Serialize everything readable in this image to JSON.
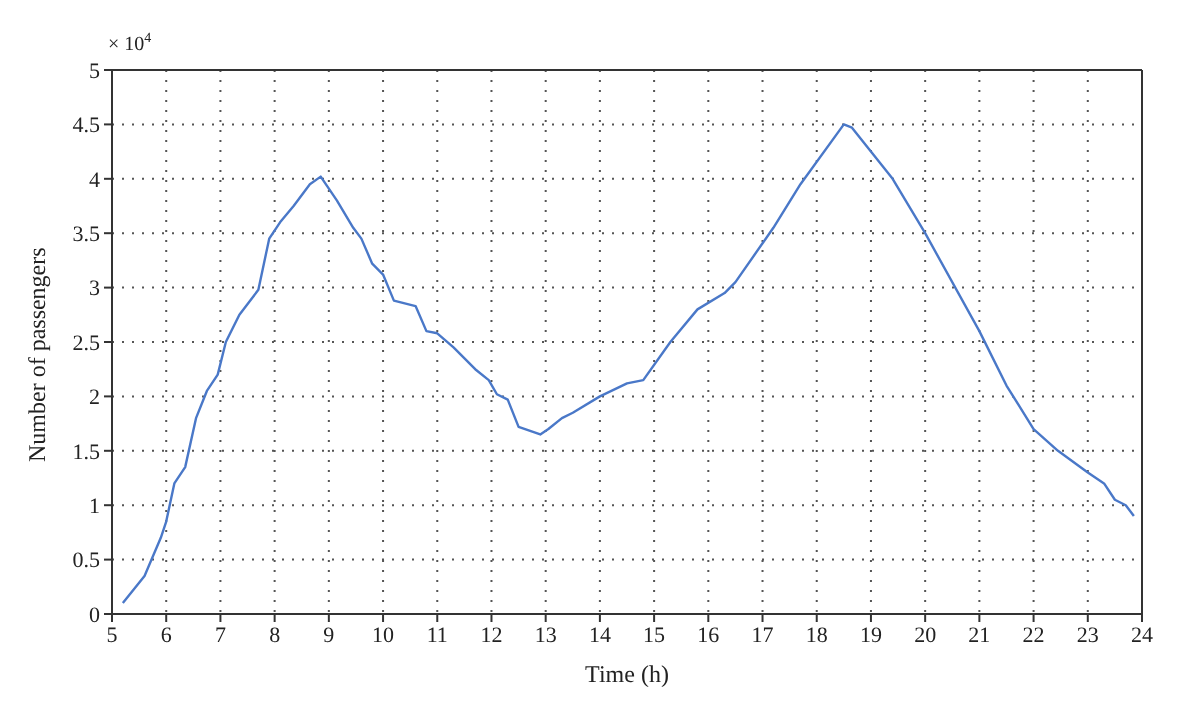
{
  "chart_data": {
    "type": "line",
    "xlabel": "Time (h)",
    "ylabel": "Number of passengers",
    "annotations": [
      "× 10$^{4}$"
    ],
    "x": [
      5.2,
      5.6,
      5.9,
      6.0,
      6.15,
      6.35,
      6.55,
      6.75,
      6.95,
      7.1,
      7.35,
      7.7,
      7.9,
      8.1,
      8.35,
      8.65,
      8.85,
      9.15,
      9.45,
      9.6,
      9.8,
      10.0,
      10.2,
      10.6,
      10.8,
      11.0,
      11.3,
      11.7,
      11.95,
      12.1,
      12.3,
      12.5,
      12.9,
      13.05,
      13.3,
      13.5,
      14.0,
      14.5,
      14.8,
      15.3,
      15.8,
      16.3,
      16.5,
      17.2,
      17.7,
      18.5,
      18.65,
      19.4,
      20.0,
      21.0,
      21.5,
      22.0,
      22.45,
      23.0,
      23.3,
      23.5,
      23.7,
      23.85
    ],
    "series": [
      {
        "color": "#4a78c8",
        "values": [
          0.1,
          0.35,
          0.7,
          0.85,
          1.2,
          1.35,
          1.8,
          2.05,
          2.2,
          2.5,
          2.75,
          2.98,
          3.45,
          3.6,
          3.75,
          3.95,
          4.02,
          3.8,
          3.55,
          3.45,
          3.22,
          3.12,
          2.88,
          2.83,
          2.6,
          2.58,
          2.45,
          2.25,
          2.15,
          2.02,
          1.97,
          1.72,
          1.65,
          1.7,
          1.8,
          1.85,
          2.0,
          2.12,
          2.15,
          2.5,
          2.8,
          2.95,
          3.05,
          3.55,
          3.95,
          4.5,
          4.47,
          4.0,
          3.5,
          2.6,
          2.1,
          1.7,
          1.5,
          1.3,
          1.2,
          1.05,
          1.0,
          0.9
        ]
      }
    ],
    "xlim": [
      5,
      24
    ],
    "xticks": [
      5,
      6,
      7,
      8,
      9,
      10,
      11,
      12,
      13,
      14,
      15,
      16,
      17,
      18,
      19,
      20,
      21,
      22,
      23,
      24
    ],
    "ylim": [
      0,
      5
    ],
    "yticks": [
      0,
      0.5,
      1,
      1.5,
      2,
      2.5,
      3,
      3.5,
      4,
      4.5,
      5
    ],
    "grid": true,
    "marker": "none",
    "line_style": "solid"
  }
}
